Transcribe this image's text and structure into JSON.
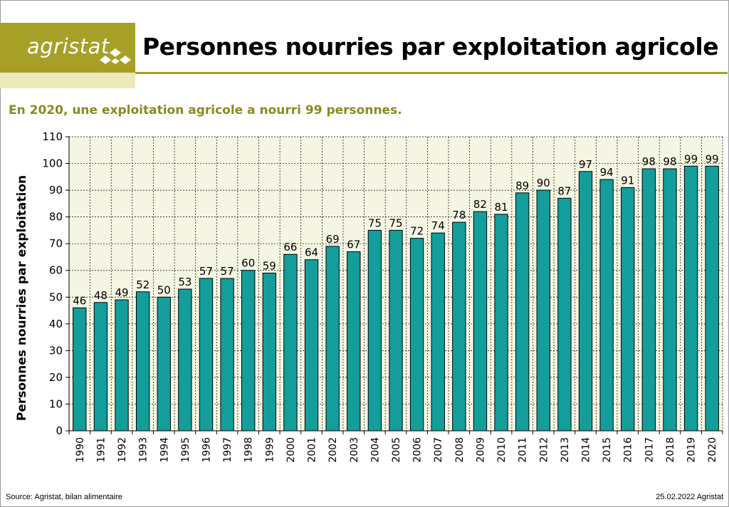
{
  "header": {
    "logo_text": "agristat",
    "title": "Personnes nourries par exploitation agricole",
    "subtitle": "En 2020, une exploitation agricole a nourri 99 personnes."
  },
  "footer": {
    "source": "Source: Agristat, bilan alimentaire",
    "date": "25.02.2022 Agristat"
  },
  "colors": {
    "brand": "#a6a026",
    "bar": "#139e9c",
    "plot_bg": "#f5f5e3"
  },
  "chart_data": {
    "type": "bar",
    "title": "Personnes nourries par exploitation agricole",
    "ylabel": "Personnes nourries par exploitation",
    "xlabel": "",
    "ylim": [
      0,
      110
    ],
    "yticks": [
      0,
      10,
      20,
      30,
      40,
      50,
      60,
      70,
      80,
      90,
      100,
      110
    ],
    "grid": true,
    "categories": [
      "1990",
      "1991",
      "1992",
      "1993",
      "1994",
      "1995",
      "1996",
      "1997",
      "1998",
      "1999",
      "2000",
      "2001",
      "2002",
      "2003",
      "2004",
      "2005",
      "2006",
      "2007",
      "2008",
      "2009",
      "2010",
      "2011",
      "2012",
      "2013",
      "2014",
      "2015",
      "2016",
      "2017",
      "2018",
      "2019",
      "2020"
    ],
    "values": [
      46,
      48,
      49,
      52,
      50,
      53,
      57,
      57,
      60,
      59,
      66,
      64,
      69,
      67,
      75,
      75,
      72,
      74,
      78,
      82,
      81,
      89,
      90,
      87,
      97,
      94,
      91,
      98,
      98,
      99,
      99
    ]
  }
}
